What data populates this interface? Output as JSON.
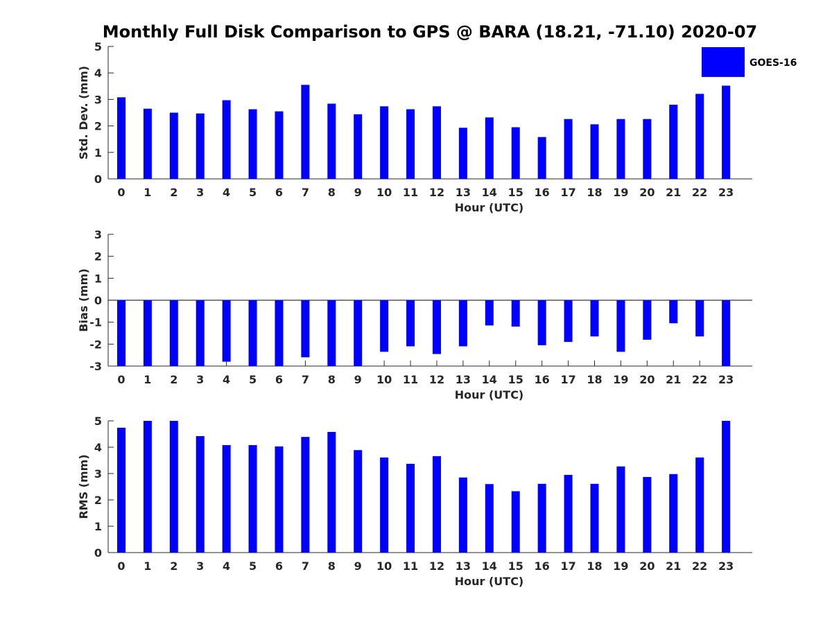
{
  "title": "Monthly Full Disk Comparison to GPS @ BARA (18.21, -71.10) 2020-07",
  "legend": {
    "label": "GOES-16",
    "placement": "top-right",
    "color": "#0000ff"
  },
  "bar_color": "#0000ff",
  "chart_data": [
    {
      "type": "bar",
      "name": "std-dev",
      "xlabel": "Hour (UTC)",
      "ylabel": "Std. Dev. (mm)",
      "ylim": [
        0,
        5
      ],
      "yticks": [
        0,
        1,
        2,
        3,
        4,
        5
      ],
      "categories": [
        "0",
        "1",
        "2",
        "3",
        "4",
        "5",
        "6",
        "7",
        "8",
        "9",
        "10",
        "11",
        "12",
        "13",
        "14",
        "15",
        "16",
        "17",
        "18",
        "19",
        "20",
        "21",
        "22",
        "23"
      ],
      "series": [
        {
          "name": "GOES-16",
          "values": [
            3.08,
            2.65,
            2.5,
            2.47,
            2.97,
            2.63,
            2.55,
            3.55,
            2.84,
            2.44,
            2.74,
            2.63,
            2.74,
            1.93,
            2.32,
            1.95,
            1.58,
            2.26,
            2.06,
            2.26,
            2.26,
            2.8,
            3.21,
            3.52
          ]
        }
      ]
    },
    {
      "type": "bar",
      "name": "bias",
      "xlabel": "Hour (UTC)",
      "ylabel": "Bias (mm)",
      "ylim": [
        -3,
        3
      ],
      "yticks": [
        -3,
        -2,
        -1,
        0,
        1,
        2,
        3
      ],
      "categories": [
        "0",
        "1",
        "2",
        "3",
        "4",
        "5",
        "6",
        "7",
        "8",
        "9",
        "10",
        "11",
        "12",
        "13",
        "14",
        "15",
        "16",
        "17",
        "18",
        "19",
        "20",
        "21",
        "22",
        "23"
      ],
      "series": [
        {
          "name": "GOES-16",
          "values": [
            -3.0,
            -3.0,
            -3.0,
            -3.0,
            -2.8,
            -3.0,
            -3.0,
            -2.6,
            -3.0,
            -3.0,
            -2.35,
            -2.1,
            -2.45,
            -2.1,
            -1.15,
            -1.2,
            -2.05,
            -1.9,
            -1.65,
            -2.35,
            -1.8,
            -1.05,
            -1.65,
            -3.0
          ]
        }
      ]
    },
    {
      "type": "bar",
      "name": "rms",
      "xlabel": "Hour (UTC)",
      "ylabel": "RMS (mm)",
      "ylim": [
        0,
        5
      ],
      "yticks": [
        0,
        1,
        2,
        3,
        4,
        5
      ],
      "categories": [
        "0",
        "1",
        "2",
        "3",
        "4",
        "5",
        "6",
        "7",
        "8",
        "9",
        "10",
        "11",
        "12",
        "13",
        "14",
        "15",
        "16",
        "17",
        "18",
        "19",
        "20",
        "21",
        "22",
        "23"
      ],
      "series": [
        {
          "name": "GOES-16",
          "values": [
            4.74,
            5.0,
            5.0,
            4.42,
            4.08,
            4.08,
            4.03,
            4.39,
            4.58,
            3.89,
            3.61,
            3.37,
            3.66,
            2.85,
            2.6,
            2.33,
            2.61,
            2.95,
            2.61,
            3.27,
            2.87,
            2.98,
            3.61,
            5.0
          ]
        }
      ]
    }
  ]
}
